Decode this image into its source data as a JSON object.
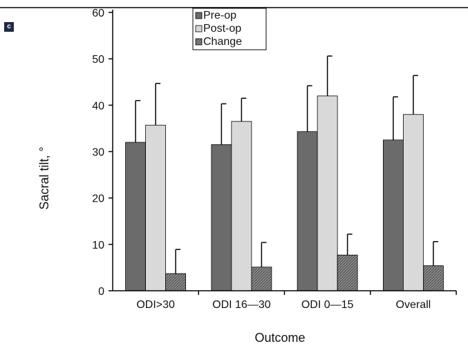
{
  "panel_label": "c",
  "chart_data": {
    "type": "bar",
    "title": "",
    "xlabel": "Outcome",
    "ylabel": "Sacral tilt, °",
    "ylim": [
      0,
      60
    ],
    "yticks": [
      0,
      10,
      20,
      30,
      40,
      50,
      60
    ],
    "categories": [
      "ODI>30",
      "ODI 16—30",
      "ODI 0—15",
      "Overall"
    ],
    "series": [
      {
        "name": "Pre-op",
        "color": "#6b6b6b",
        "pattern": "solid",
        "values": [
          32.0,
          31.5,
          34.3,
          32.5
        ],
        "error_plus": [
          9.0,
          8.8,
          9.9,
          9.3
        ]
      },
      {
        "name": "Post-op",
        "color": "#d9d9d9",
        "pattern": "solid",
        "values": [
          35.7,
          36.5,
          42.0,
          38.0
        ],
        "error_plus": [
          9.0,
          5.0,
          8.6,
          8.4
        ]
      },
      {
        "name": "Change",
        "color": "#7a7a7a",
        "pattern": "hatch",
        "values": [
          3.7,
          5.1,
          7.7,
          5.4
        ],
        "error_plus": [
          5.2,
          5.3,
          4.5,
          5.2
        ]
      }
    ],
    "legend": {
      "position": "top-center",
      "entries": [
        "Pre-op",
        "Post-op",
        "Change"
      ]
    },
    "grid": false
  }
}
